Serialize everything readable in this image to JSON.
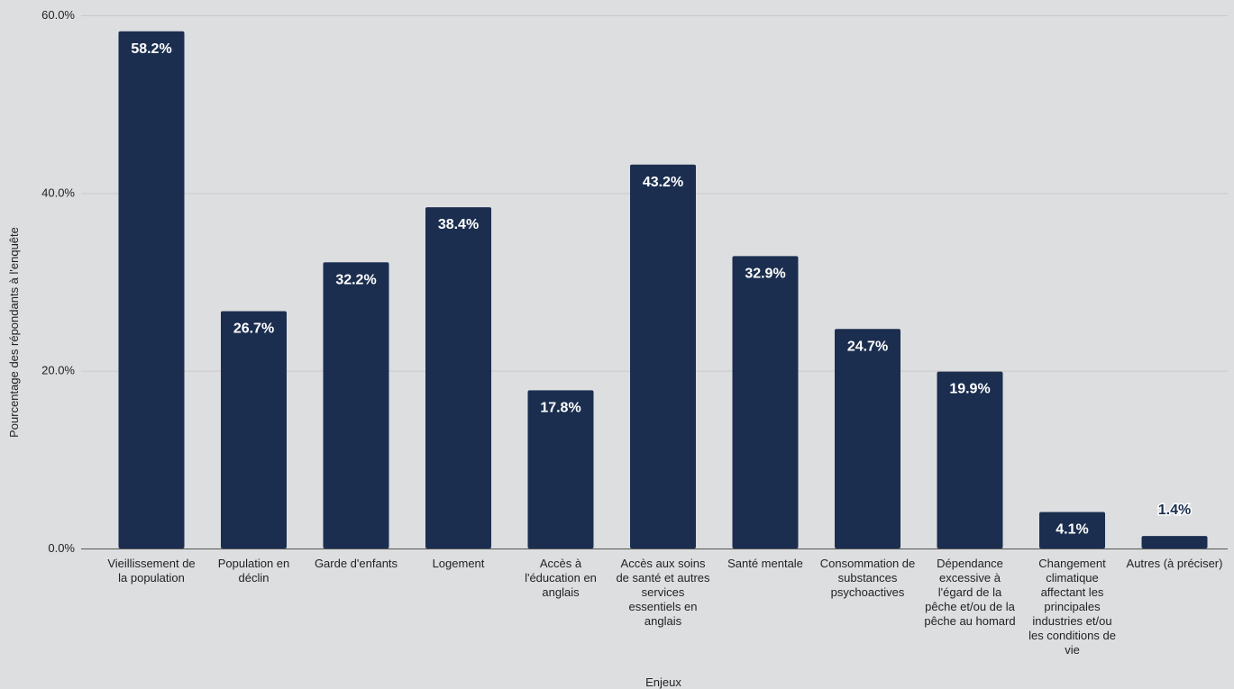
{
  "chart_data": {
    "type": "bar",
    "xlabel": "Enjeux",
    "ylabel": "Pourcentage des répondants à l'enquête",
    "ylim": [
      0,
      60
    ],
    "yticks": [
      "0.0%",
      "20.0%",
      "40.0%",
      "60.0%"
    ],
    "grid": true,
    "categories": [
      "Vieillissement de la population",
      "Population en déclin",
      "Garde d'enfants",
      "Logement",
      "Accès à l'éducation en anglais",
      "Accès aux soins de santé et autres services essentiels en anglais",
      "Santé mentale",
      "Consommation de substances psychoactives",
      "Dépendance excessive à l'égard de la pêche et/ou de la pêche au homard",
      "Changement climatique affectant les principales industries et/ou les conditions de vie",
      "Autres (à préciser)"
    ],
    "values": [
      58.2,
      26.7,
      32.2,
      38.4,
      17.8,
      43.2,
      32.9,
      24.7,
      19.9,
      4.1,
      1.4
    ],
    "data_labels": [
      "58.2%",
      "26.7%",
      "32.2%",
      "38.4%",
      "17.8%",
      "43.2%",
      "32.9%",
      "24.7%",
      "19.9%",
      "4.1%",
      "1.4%"
    ],
    "colors": {
      "bar": "#1b2e4f",
      "grid": "#c9cacc",
      "axis": "#555555",
      "outside_label": "#1b2e4f"
    }
  }
}
